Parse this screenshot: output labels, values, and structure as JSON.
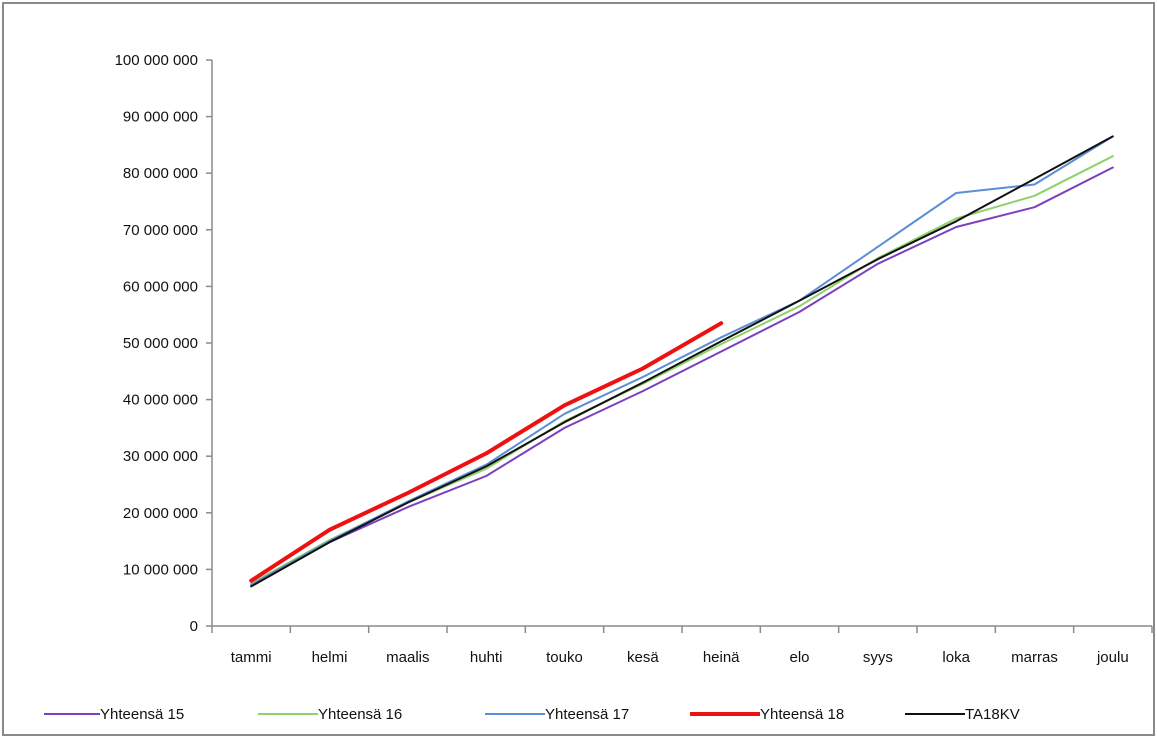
{
  "chart_data": {
    "type": "line",
    "title": "",
    "xlabel": "",
    "ylabel": "",
    "categories": [
      "tammi",
      "helmi",
      "maalis",
      "huhti",
      "touko",
      "kesä",
      "heinä",
      "elo",
      "syys",
      "loka",
      "marras",
      "joulu"
    ],
    "ylim": [
      0,
      100000000
    ],
    "yticks": [
      0,
      10000000,
      20000000,
      30000000,
      40000000,
      50000000,
      60000000,
      70000000,
      80000000,
      90000000,
      100000000
    ],
    "ytick_labels": [
      "0",
      "10 000 000",
      "20 000 000",
      "30 000 000",
      "40 000 000",
      "50 000 000",
      "60 000 000",
      "70 000 000",
      "80 000 000",
      "90 000 000",
      "100 000 000"
    ],
    "grid": false,
    "legend_position": "bottom",
    "series": [
      {
        "name": "Yhteensä 15",
        "color": "#7b3fbf",
        "width": 2,
        "values": [
          7200000,
          14800000,
          21000000,
          26500000,
          35000000,
          41500000,
          48500000,
          55500000,
          64000000,
          70500000,
          74000000,
          81000000
        ]
      },
      {
        "name": "Yhteensä 16",
        "color": "#8fd16a",
        "width": 2,
        "values": [
          7500000,
          15200000,
          21800000,
          27800000,
          36200000,
          42800000,
          49800000,
          56500000,
          65000000,
          72000000,
          76000000,
          83000000
        ]
      },
      {
        "name": "Yhteensä 17",
        "color": "#5b8ed6",
        "width": 2,
        "values": [
          7300000,
          15000000,
          22000000,
          28500000,
          37500000,
          44000000,
          51000000,
          57500000,
          67000000,
          76500000,
          78000000,
          86500000
        ]
      },
      {
        "name": "Yhteensä 18",
        "color": "#ee1111",
        "width": 4,
        "values": [
          8000000,
          17000000,
          23500000,
          30500000,
          39000000,
          45500000,
          53500000,
          null,
          null,
          null,
          null,
          null
        ]
      },
      {
        "name": "TA18KV",
        "color": "#111111",
        "width": 2,
        "values": [
          7000000,
          14800000,
          21800000,
          28200000,
          36000000,
          43000000,
          50300000,
          57500000,
          64800000,
          71500000,
          79000000,
          86500000
        ]
      }
    ]
  }
}
